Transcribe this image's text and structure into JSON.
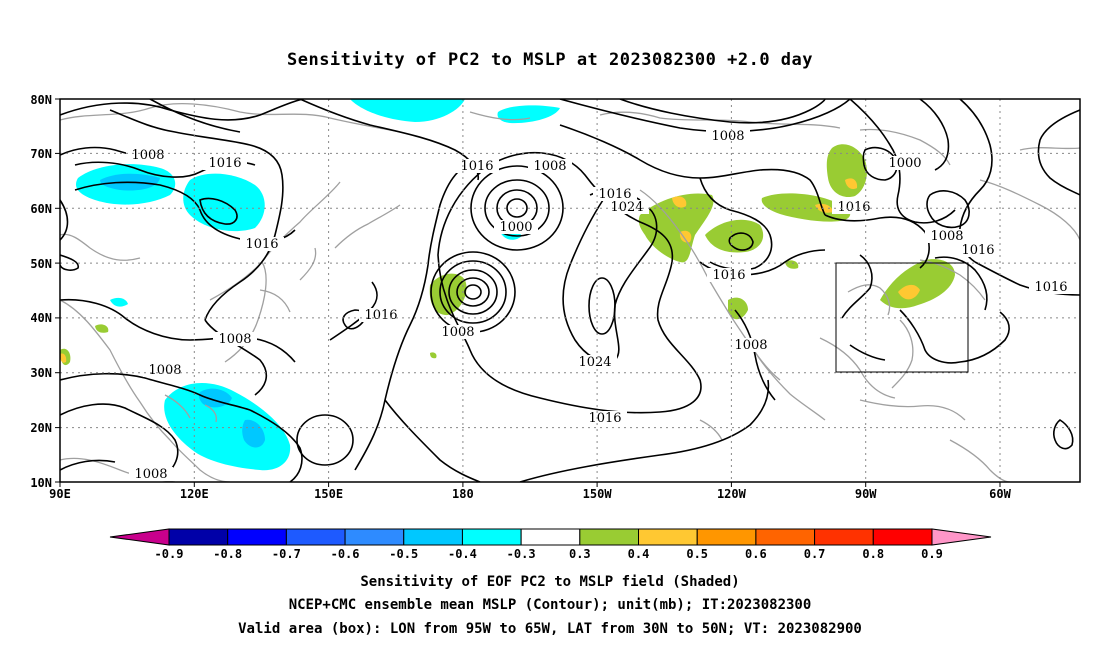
{
  "title": "Sensitivity of PC2 to MSLP at 2023082300 +2.0 day",
  "y_ticks": [
    "10N",
    "20N",
    "30N",
    "40N",
    "50N",
    "60N",
    "70N",
    "80N"
  ],
  "x_ticks": [
    "90E",
    "120E",
    "150E",
    "180",
    "150W",
    "120W",
    "90W",
    "60W"
  ],
  "colorbar": {
    "labels": [
      "-0.9",
      "-0.8",
      "-0.7",
      "-0.6",
      "-0.5",
      "-0.4",
      "-0.3",
      "0.3",
      "0.4",
      "0.5",
      "0.6",
      "0.7",
      "0.8",
      "0.9"
    ],
    "colors": [
      "#0000a8",
      "#0000ff",
      "#1e5aff",
      "#2e8bff",
      "#00c8ff",
      "#00ffff",
      "#ffffff",
      "#99cc33",
      "#ffc832",
      "#ff9600",
      "#ff6400",
      "#ff3200",
      "#ff0000"
    ],
    "low_color": "#c8008c",
    "high_color": "#ff96c8"
  },
  "contour_labels": {
    "c1": "1008",
    "c2": "1016",
    "c3": "1016",
    "c4": "1016",
    "c5": "1008",
    "c6": "1008",
    "c7": "1008",
    "c8": "1008",
    "c9": "1000",
    "c10": "1016",
    "c11": "1024",
    "c12": "1008",
    "c13": "1024",
    "c14": "1016",
    "c15": "1008",
    "c16": "1016",
    "c17": "1016",
    "c18": "1008",
    "c19": "1000",
    "c20": "1016",
    "c21": "1008",
    "c22": "1016",
    "c23": "1016",
    "c24": "1016"
  },
  "captions": {
    "line1": "Sensitivity of EOF PC2 to MSLP field (Shaded)",
    "line2": "NCEP+CMC ensemble mean MSLP (Contour); unit(mb); IT:2023082300",
    "line3": "Valid area (box): LON from 95W to 65W, LAT from 30N to 50N; VT: 2023082900"
  },
  "valid_box": {
    "lon_from": "95W",
    "lon_to": "65W",
    "lat_from": "30N",
    "lat_to": "50N"
  }
}
